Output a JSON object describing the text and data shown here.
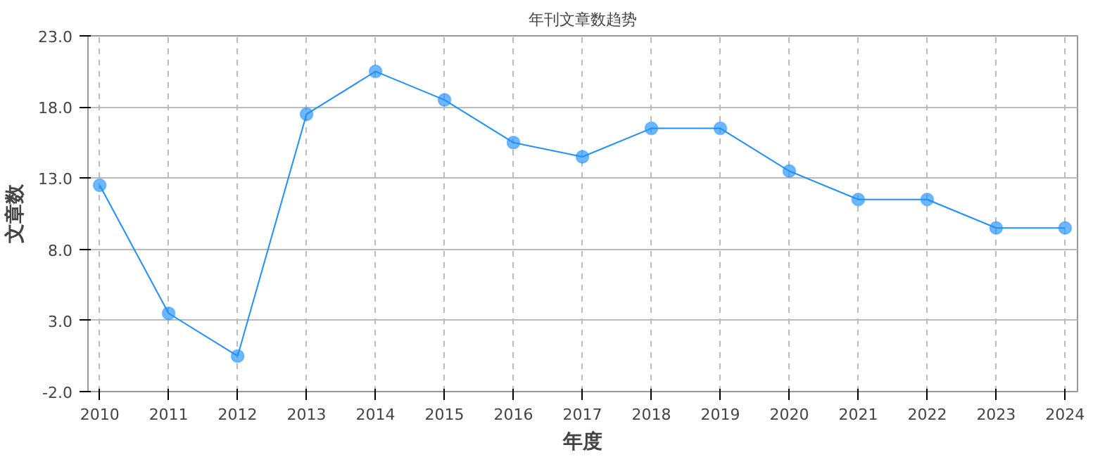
{
  "chart_data": {
    "type": "line",
    "title": "年刊文章数趋势",
    "xlabel": "年度",
    "ylabel": "文章数",
    "x": [
      2010,
      2011,
      2012,
      2013,
      2014,
      2015,
      2016,
      2017,
      2018,
      2019,
      2020,
      2021,
      2022,
      2023,
      2024
    ],
    "series": [
      {
        "color": "#1e90ff",
        "values": [
          12.5,
          3.5,
          0.5,
          17.5,
          20.5,
          18.5,
          15.5,
          14.5,
          16.5,
          16.5,
          13.5,
          11.5,
          11.5,
          9.5,
          9.5
        ]
      }
    ],
    "xlim": [
      2009.83,
      2024.18
    ],
    "xticks": [
      2010,
      2011,
      2012,
      2013,
      2014,
      2015,
      2016,
      2017,
      2018,
      2019,
      2020,
      2021,
      2022,
      2023,
      2024
    ],
    "ylim": [
      -2,
      23
    ],
    "yticks": [
      {
        "value": -2,
        "label": "-2.0"
      },
      {
        "value": 3,
        "label": "3.0"
      },
      {
        "value": 8,
        "label": "8.0"
      },
      {
        "value": 13,
        "label": "13.0"
      },
      {
        "value": 18,
        "label": "18.0"
      },
      {
        "value": 23,
        "label": "23.0"
      }
    ],
    "grid": true,
    "marker": "circle",
    "line_style": "solid"
  }
}
